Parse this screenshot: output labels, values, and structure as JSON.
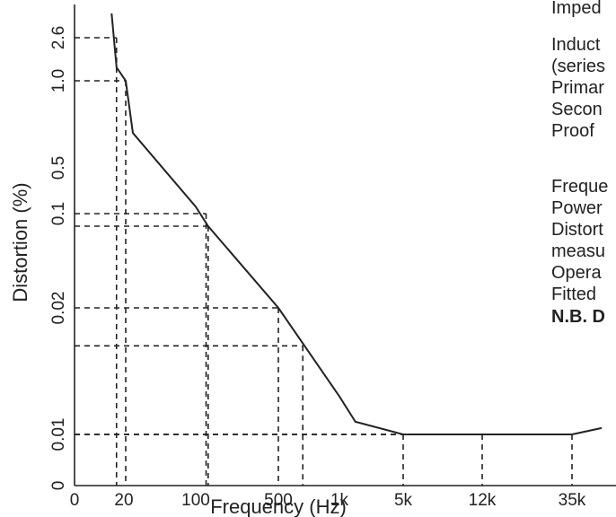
{
  "chart_data": {
    "type": "line",
    "title": "",
    "xlabel": "Frequency (Hz)",
    "ylabel": "Distortion (%)",
    "x_ticks": [
      "0",
      "20",
      "100",
      "500",
      "1k",
      "5k",
      "12k",
      "35k"
    ],
    "y_ticks": [
      "0",
      "0.01",
      "0.02",
      "0.1",
      "0.5",
      "1.0",
      "2.6"
    ],
    "grid": false,
    "series": [
      {
        "x": [
          15,
          17,
          22,
          30,
          100,
          160,
          500,
          1000,
          2000,
          5000,
          12000,
          35000,
          50000
        ],
        "y": [
          3.5,
          1.5,
          1.0,
          0.7,
          0.16,
          0.09,
          0.02,
          0.013,
          0.011,
          0.01,
          0.01,
          0.01,
          0.0105
        ]
      }
    ],
    "reference_lines": [
      {
        "x": 17,
        "y": 2.6
      },
      {
        "x": 22,
        "y": 1.0
      },
      {
        "x": 150,
        "y": 0.1
      },
      {
        "x": 160,
        "y": 0.09
      },
      {
        "x": 500,
        "y": 0.02
      },
      {
        "x": 700,
        "y": 0.017
      },
      {
        "x": 5000,
        "y": 0.01
      },
      {
        "x": 12000,
        "y": 0.01
      },
      {
        "x": 35000,
        "y": 0.01
      }
    ]
  },
  "side_text": [
    {
      "text": "Imped",
      "bold": false
    },
    {
      "text": "Induct",
      "bold": false
    },
    {
      "text": "(series",
      "bold": false
    },
    {
      "text": "Primar",
      "bold": false
    },
    {
      "text": "Secon",
      "bold": false
    },
    {
      "text": "Proof",
      "bold": false
    },
    {
      "text": "Freque",
      "bold": false
    },
    {
      "text": "Power",
      "bold": false
    },
    {
      "text": "Distort",
      "bold": false
    },
    {
      "text": "measu",
      "bold": false
    },
    {
      "text": "Opera",
      "bold": false
    },
    {
      "text": "Fitted",
      "bold": false
    },
    {
      "text": "N.B. D",
      "bold": true
    }
  ]
}
